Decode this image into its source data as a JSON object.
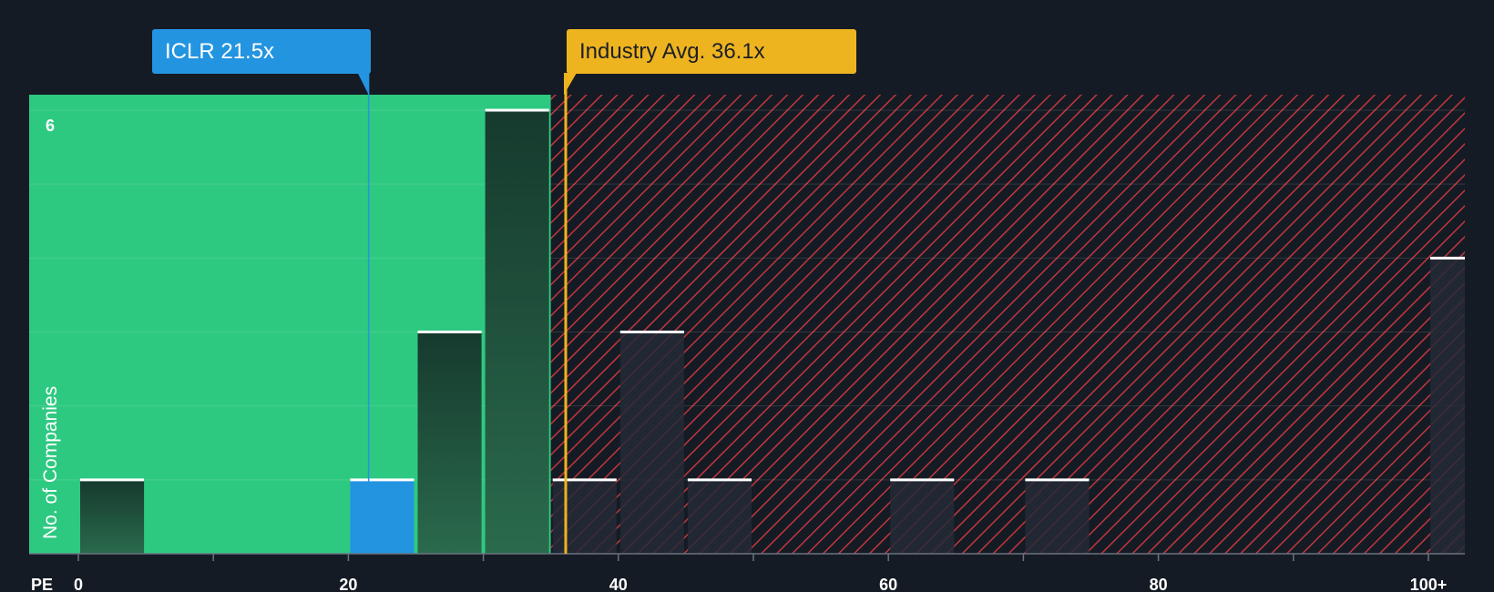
{
  "chart_data": {
    "type": "bar",
    "title": "",
    "xlabel": "PE",
    "ylabel": "No. of Companies",
    "xlim": [
      0,
      100
    ],
    "ylim": [
      0,
      6
    ],
    "x_ticks": [
      "0",
      "20",
      "40",
      "60",
      "80",
      "100+"
    ],
    "y_ticks": [
      "6"
    ],
    "bins": [
      {
        "start": 0,
        "end": 5,
        "count": 1
      },
      {
        "start": 20,
        "end": 25,
        "count": 1,
        "highlight": true
      },
      {
        "start": 25,
        "end": 30,
        "count": 3
      },
      {
        "start": 30,
        "end": 35,
        "count": 6
      },
      {
        "start": 35,
        "end": 40,
        "count": 1
      },
      {
        "start": 40,
        "end": 45,
        "count": 3
      },
      {
        "start": 45,
        "end": 50,
        "count": 1
      },
      {
        "start": 60,
        "end": 65,
        "count": 1
      },
      {
        "start": 70,
        "end": 75,
        "count": 1
      },
      {
        "start": 100,
        "end": 105,
        "count": 4
      }
    ],
    "fair_zone_end": 35,
    "company": {
      "label": "ICLR 21.5x",
      "value": 21.5
    },
    "industry": {
      "label": "Industry Avg. 36.1x",
      "value": 36.1
    },
    "colors": {
      "background": "#151b24",
      "fair_zone": "#2ec981",
      "overvalued_stripe": "#e03b42",
      "bar": "#1a4535",
      "bar_overvalued": "#252a36",
      "company_bar": "#2394e0",
      "company_callout": "#2394e0",
      "industry_line": "#eeb420",
      "industry_callout": "#eeb420"
    }
  }
}
